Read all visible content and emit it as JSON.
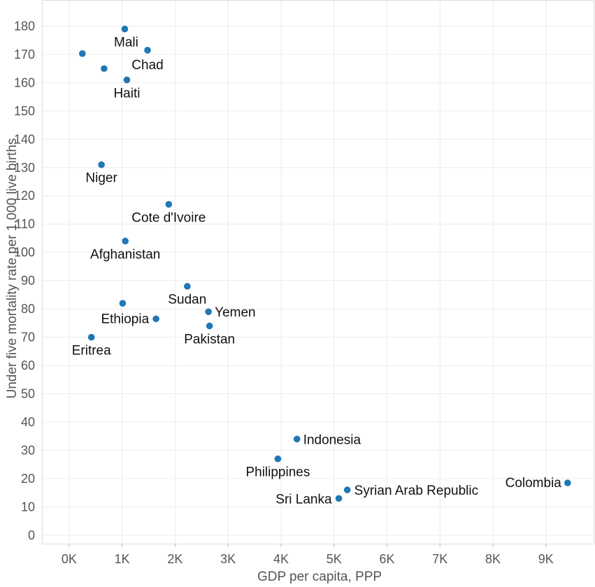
{
  "chart_data": {
    "type": "scatter",
    "title": "",
    "xlabel": "GDP per capita, PPP",
    "ylabel": "Under five mortality rate per 1,000 live births",
    "xlim": [
      -500,
      9900
    ],
    "ylim": [
      -3,
      189
    ],
    "x_ticks": [
      0,
      1000,
      2000,
      3000,
      4000,
      5000,
      6000,
      7000,
      8000,
      9000
    ],
    "x_tick_labels": [
      "0K",
      "1K",
      "2K",
      "3K",
      "4K",
      "5K",
      "6K",
      "7K",
      "8K",
      "9K"
    ],
    "y_ticks": [
      0,
      10,
      20,
      30,
      40,
      50,
      60,
      70,
      80,
      90,
      100,
      110,
      120,
      130,
      140,
      150,
      160,
      170,
      180
    ],
    "grid": true,
    "marker_color": "#1f77b4",
    "points": [
      {
        "label": "Mali",
        "x": 1050,
        "y": 179
      },
      {
        "label": "Chad",
        "x": 1480,
        "y": 171.5
      },
      {
        "label": "",
        "x": 250,
        "y": 170.3
      },
      {
        "label": "",
        "x": 660,
        "y": 165
      },
      {
        "label": "Haiti",
        "x": 1090,
        "y": 161
      },
      {
        "label": "Niger",
        "x": 610,
        "y": 131
      },
      {
        "label": "Cote d'Ivoire",
        "x": 1880,
        "y": 117
      },
      {
        "label": "Afghanistan",
        "x": 1060,
        "y": 104
      },
      {
        "label": "Sudan",
        "x": 2230,
        "y": 88
      },
      {
        "label": "Ethiopia",
        "x": 1640,
        "y": 76.5
      },
      {
        "label": "",
        "x": 1010,
        "y": 82
      },
      {
        "label": "Yemen",
        "x": 2630,
        "y": 79
      },
      {
        "label": "Pakistan",
        "x": 2650,
        "y": 74
      },
      {
        "label": "Eritrea",
        "x": 420,
        "y": 70
      },
      {
        "label": "Indonesia",
        "x": 4300,
        "y": 34
      },
      {
        "label": "Philippines",
        "x": 3940,
        "y": 27
      },
      {
        "label": "Syrian Arab Republic",
        "x": 5250,
        "y": 16
      },
      {
        "label": "Sri Lanka",
        "x": 5090,
        "y": 13
      },
      {
        "label": "Colombia",
        "x": 9410,
        "y": 18.5
      }
    ]
  }
}
